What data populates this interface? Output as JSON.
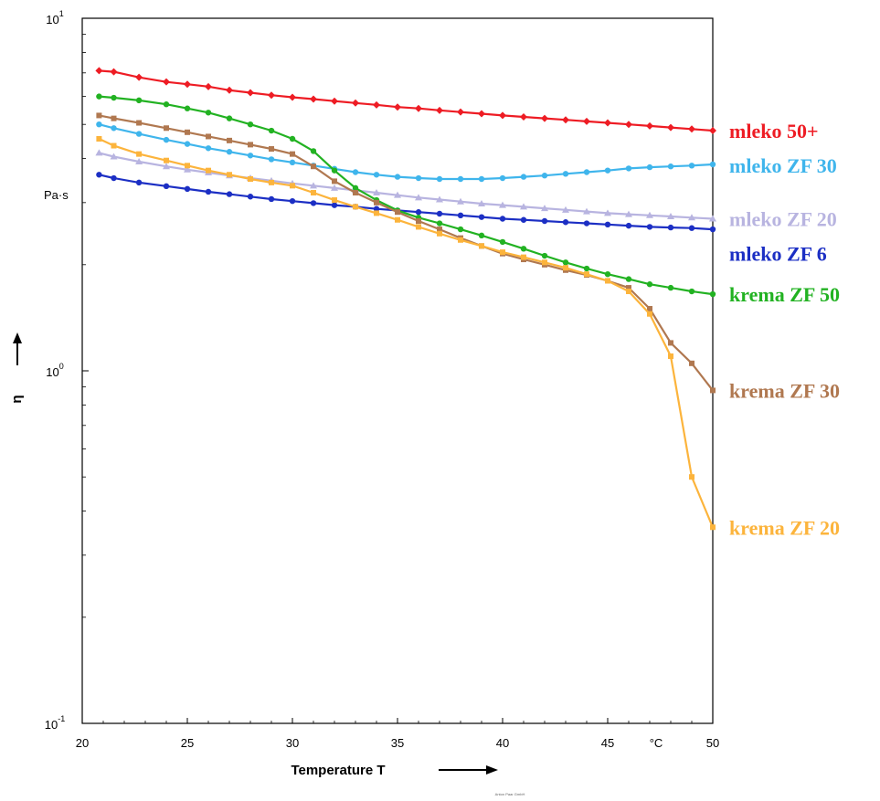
{
  "chart_data": {
    "type": "line",
    "title": "",
    "xlabel": "Temperature T",
    "x_unit": "°C",
    "ylabel": "η",
    "y_unit": "Pa·s",
    "y_scale": "log",
    "xlim": [
      20,
      50
    ],
    "ylim": [
      0.1,
      10
    ],
    "x_ticks": [
      "20",
      "25",
      "30",
      "35",
      "40",
      "45",
      "50"
    ],
    "y_ticks": [
      {
        "value": 10,
        "base": "10",
        "exp": "1"
      },
      {
        "value": 1,
        "base": "10",
        "exp": "0"
      },
      {
        "value": 0.1,
        "base": "10",
        "exp": "-1"
      }
    ],
    "grid": false,
    "legend": "labels at right end of each series",
    "note": "Anton Paar GmbH",
    "series": [
      {
        "name": "mleko 50+",
        "color": "#ee1c24",
        "marker": "diamond",
        "x": [
          20.8,
          21.5,
          22.7,
          24,
          25,
          26,
          27,
          28,
          29,
          30,
          31,
          32,
          33,
          34,
          35,
          36,
          37,
          38,
          39,
          40,
          41,
          42,
          43,
          44,
          45,
          46,
          47,
          48,
          49,
          50
        ],
        "y": [
          7.1,
          7.05,
          6.8,
          6.6,
          6.5,
          6.4,
          6.25,
          6.15,
          6.05,
          5.97,
          5.9,
          5.82,
          5.75,
          5.68,
          5.6,
          5.55,
          5.48,
          5.42,
          5.36,
          5.3,
          5.25,
          5.2,
          5.15,
          5.1,
          5.05,
          5.0,
          4.95,
          4.9,
          4.85,
          4.8
        ]
      },
      {
        "name": "mleko ZF 30",
        "color": "#3fb5ec",
        "marker": "circle",
        "x": [
          20.8,
          21.5,
          22.7,
          24,
          25,
          26,
          27,
          28,
          29,
          30,
          31,
          32,
          33,
          34,
          35,
          36,
          37,
          38,
          39,
          40,
          41,
          42,
          43,
          44,
          45,
          46,
          47,
          48,
          49,
          50
        ],
        "y": [
          5.0,
          4.88,
          4.7,
          4.52,
          4.4,
          4.28,
          4.18,
          4.08,
          3.98,
          3.9,
          3.82,
          3.74,
          3.66,
          3.6,
          3.55,
          3.52,
          3.5,
          3.5,
          3.5,
          3.52,
          3.55,
          3.58,
          3.62,
          3.66,
          3.7,
          3.75,
          3.78,
          3.8,
          3.82,
          3.85
        ]
      },
      {
        "name": "mleko ZF 20",
        "color": "#b8b4e0",
        "marker": "triangle",
        "x": [
          20.8,
          21.5,
          22.7,
          24,
          25,
          26,
          27,
          28,
          29,
          30,
          31,
          32,
          33,
          34,
          35,
          36,
          37,
          38,
          39,
          40,
          41,
          42,
          43,
          44,
          45,
          46,
          47,
          48,
          49,
          50
        ],
        "y": [
          4.15,
          4.05,
          3.92,
          3.8,
          3.72,
          3.65,
          3.58,
          3.52,
          3.46,
          3.4,
          3.35,
          3.3,
          3.25,
          3.2,
          3.15,
          3.1,
          3.06,
          3.02,
          2.98,
          2.95,
          2.92,
          2.89,
          2.86,
          2.83,
          2.8,
          2.78,
          2.76,
          2.74,
          2.72,
          2.7
        ]
      },
      {
        "name": "mleko ZF 6",
        "color": "#1c2fc4",
        "marker": "circle",
        "x": [
          20.8,
          21.5,
          22.7,
          24,
          25,
          26,
          27,
          28,
          29,
          30,
          31,
          32,
          33,
          34,
          35,
          36,
          37,
          38,
          39,
          40,
          41,
          42,
          43,
          44,
          45,
          46,
          47,
          48,
          49,
          50
        ],
        "y": [
          3.6,
          3.52,
          3.42,
          3.34,
          3.28,
          3.22,
          3.17,
          3.12,
          3.07,
          3.03,
          2.99,
          2.95,
          2.92,
          2.88,
          2.85,
          2.82,
          2.79,
          2.76,
          2.73,
          2.7,
          2.68,
          2.66,
          2.64,
          2.62,
          2.6,
          2.58,
          2.56,
          2.55,
          2.54,
          2.52
        ]
      },
      {
        "name": "krema ZF 50",
        "color": "#22b222",
        "marker": "circle",
        "x": [
          20.8,
          21.5,
          22.7,
          24,
          25,
          26,
          27,
          28,
          29,
          30,
          31,
          32,
          33,
          34,
          35,
          36,
          37,
          38,
          39,
          40,
          41,
          42,
          43,
          44,
          45,
          46,
          47,
          48,
          49,
          50
        ],
        "y": [
          6.0,
          5.95,
          5.85,
          5.7,
          5.55,
          5.4,
          5.2,
          5.0,
          4.8,
          4.55,
          4.2,
          3.7,
          3.3,
          3.05,
          2.85,
          2.72,
          2.62,
          2.52,
          2.42,
          2.32,
          2.22,
          2.12,
          2.03,
          1.95,
          1.88,
          1.82,
          1.76,
          1.72,
          1.68,
          1.65
        ]
      },
      {
        "name": "krema ZF 30",
        "color": "#b07850",
        "marker": "square",
        "x": [
          20.8,
          21.5,
          22.7,
          24,
          25,
          26,
          27,
          28,
          29,
          30,
          31,
          32,
          33,
          34,
          35,
          36,
          37,
          38,
          39,
          40,
          41,
          42,
          43,
          44,
          45,
          46,
          47,
          48,
          49,
          50
        ],
        "y": [
          5.3,
          5.2,
          5.05,
          4.88,
          4.75,
          4.62,
          4.5,
          4.38,
          4.26,
          4.12,
          3.8,
          3.45,
          3.2,
          3.0,
          2.82,
          2.66,
          2.52,
          2.38,
          2.26,
          2.15,
          2.07,
          2.0,
          1.93,
          1.87,
          1.8,
          1.72,
          1.5,
          1.2,
          1.05,
          0.88
        ]
      },
      {
        "name": "krema ZF 20",
        "color": "#fcb43c",
        "marker": "square",
        "x": [
          20.8,
          21.5,
          22.7,
          24,
          25,
          26,
          27,
          28,
          29,
          30,
          31,
          32,
          33,
          34,
          35,
          36,
          37,
          38,
          39,
          40,
          41,
          42,
          43,
          44,
          45,
          46,
          47,
          48,
          49,
          50
        ],
        "y": [
          4.55,
          4.35,
          4.12,
          3.95,
          3.82,
          3.7,
          3.6,
          3.5,
          3.42,
          3.35,
          3.2,
          3.05,
          2.92,
          2.8,
          2.68,
          2.56,
          2.45,
          2.35,
          2.26,
          2.17,
          2.1,
          2.03,
          1.96,
          1.88,
          1.8,
          1.68,
          1.45,
          1.1,
          0.5,
          0.36
        ]
      }
    ]
  }
}
